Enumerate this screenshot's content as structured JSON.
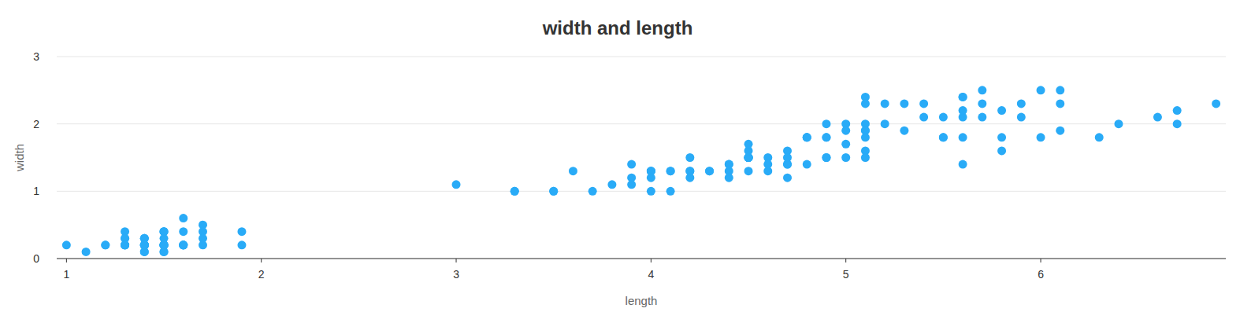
{
  "chart_data": {
    "type": "scatter",
    "title": "width and length",
    "x_label": "length",
    "y_label": "width",
    "color": "#29abf7",
    "grid": true,
    "marker": "circle",
    "xlim": [
      0.95,
      6.95
    ],
    "xticks": [
      1,
      2,
      3,
      4,
      5,
      6
    ],
    "ylim": [
      0,
      3
    ],
    "yticks": [
      0,
      1,
      2,
      3
    ],
    "x": [
      1.4,
      1.4,
      1.3,
      1.5,
      1.4,
      1.7,
      1.4,
      1.5,
      1.4,
      1.5,
      1.5,
      1.6,
      1.4,
      1.1,
      1.2,
      1.5,
      1.3,
      1.4,
      1.7,
      1.5,
      1.7,
      1.5,
      1.0,
      1.7,
      1.9,
      1.6,
      1.6,
      1.5,
      1.4,
      1.6,
      1.6,
      1.5,
      1.5,
      1.4,
      1.5,
      1.2,
      1.3,
      1.4,
      1.3,
      1.5,
      1.3,
      1.3,
      1.3,
      1.6,
      1.9,
      1.4,
      1.6,
      1.4,
      1.5,
      1.4,
      4.7,
      4.5,
      4.9,
      4.0,
      4.6,
      4.5,
      4.7,
      3.3,
      4.6,
      3.9,
      3.5,
      4.2,
      4.0,
      4.7,
      3.6,
      4.4,
      4.5,
      4.1,
      4.5,
      3.9,
      4.8,
      4.0,
      4.9,
      4.7,
      4.3,
      4.4,
      4.8,
      5.0,
      4.5,
      3.5,
      3.8,
      3.7,
      3.9,
      5.1,
      4.5,
      4.5,
      4.7,
      4.4,
      4.1,
      4.0,
      4.4,
      4.6,
      4.0,
      3.3,
      4.2,
      4.2,
      4.2,
      4.3,
      3.0,
      4.1,
      6.0,
      5.1,
      5.9,
      5.6,
      5.8,
      6.6,
      4.5,
      6.3,
      5.8,
      6.1,
      5.1,
      5.3,
      5.5,
      5.0,
      5.1,
      5.3,
      5.5,
      6.7,
      6.9,
      5.0,
      5.7,
      4.9,
      6.7,
      4.9,
      5.7,
      6.0,
      4.8,
      4.9,
      5.6,
      5.8,
      6.1,
      6.4,
      5.6,
      5.1,
      5.6,
      6.1,
      5.6,
      5.5,
      4.8,
      5.4,
      5.6,
      5.1,
      5.1,
      5.9,
      5.7,
      5.2,
      5.0,
      5.2,
      5.4,
      5.1
    ],
    "values": [
      0.2,
      0.2,
      0.2,
      0.2,
      0.2,
      0.4,
      0.3,
      0.2,
      0.2,
      0.1,
      0.2,
      0.2,
      0.1,
      0.1,
      0.2,
      0.4,
      0.4,
      0.3,
      0.3,
      0.3,
      0.2,
      0.4,
      0.2,
      0.5,
      0.2,
      0.2,
      0.4,
      0.2,
      0.2,
      0.2,
      0.2,
      0.4,
      0.1,
      0.2,
      0.2,
      0.2,
      0.2,
      0.1,
      0.2,
      0.2,
      0.3,
      0.3,
      0.2,
      0.6,
      0.4,
      0.3,
      0.2,
      0.2,
      0.2,
      0.2,
      1.4,
      1.5,
      1.5,
      1.3,
      1.5,
      1.3,
      1.6,
      1.0,
      1.3,
      1.4,
      1.0,
      1.5,
      1.0,
      1.4,
      1.3,
      1.4,
      1.5,
      1.0,
      1.5,
      1.1,
      1.8,
      1.3,
      1.5,
      1.2,
      1.3,
      1.4,
      1.4,
      1.7,
      1.5,
      1.0,
      1.1,
      1.0,
      1.2,
      1.6,
      1.5,
      1.6,
      1.5,
      1.3,
      1.3,
      1.3,
      1.2,
      1.4,
      1.2,
      1.0,
      1.3,
      1.2,
      1.3,
      1.3,
      1.1,
      1.3,
      2.5,
      1.9,
      2.1,
      1.8,
      2.2,
      2.1,
      1.7,
      1.8,
      1.8,
      2.5,
      2.0,
      1.9,
      2.1,
      2.0,
      2.4,
      2.3,
      1.8,
      2.2,
      2.3,
      1.5,
      2.3,
      2.0,
      2.0,
      1.8,
      2.1,
      1.8,
      1.8,
      1.8,
      2.1,
      1.6,
      1.9,
      2.0,
      2.2,
      1.5,
      1.4,
      2.3,
      2.4,
      1.8,
      1.8,
      2.1,
      2.4,
      2.3,
      1.9,
      2.3,
      2.5,
      2.3,
      1.9,
      2.0,
      2.3,
      1.8
    ]
  }
}
